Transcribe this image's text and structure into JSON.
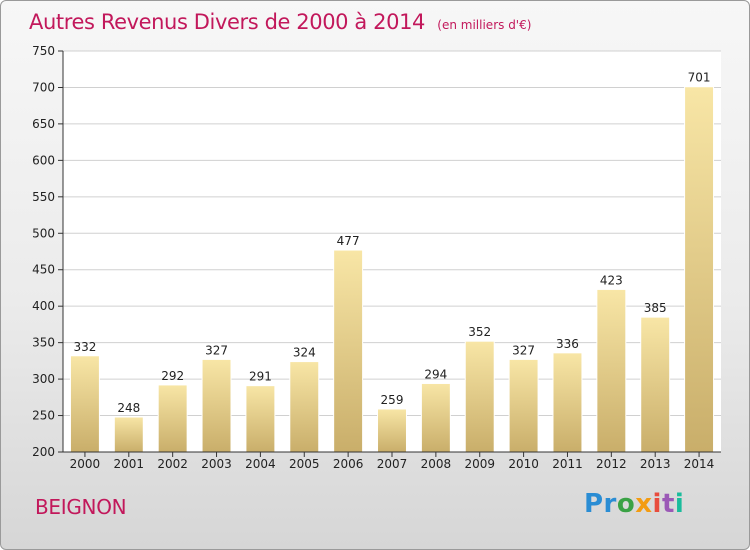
{
  "header": {
    "title": "Autres Revenus Divers de 2000 à 2014",
    "unit": "(en milliers d'€)"
  },
  "footer": {
    "town": "BEIGNON",
    "logo": [
      "Pr",
      "o",
      "x",
      "i",
      "t",
      "i"
    ]
  },
  "colors": {
    "title": "#c2185b",
    "bar_light": "#f8e6a6",
    "bar_dark": "#c9ae6a",
    "grid": "#d0d0d0"
  },
  "chart_data": {
    "type": "bar",
    "title": "Autres Revenus Divers de 2000 à 2014",
    "xlabel": "",
    "ylabel": "",
    "categories": [
      "2000",
      "2001",
      "2002",
      "2003",
      "2004",
      "2005",
      "2006",
      "2007",
      "2008",
      "2009",
      "2010",
      "2011",
      "2012",
      "2013",
      "2014"
    ],
    "values": [
      332,
      248,
      292,
      327,
      291,
      324,
      477,
      259,
      294,
      352,
      327,
      336,
      423,
      385,
      701
    ],
    "ylim": [
      200,
      750
    ],
    "yticks": [
      200,
      250,
      300,
      350,
      400,
      450,
      500,
      550,
      600,
      650,
      700,
      750
    ],
    "grid": true
  }
}
